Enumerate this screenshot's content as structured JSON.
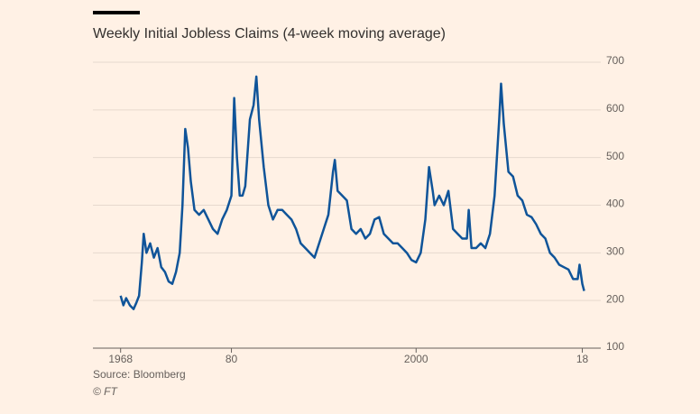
{
  "chart_data": {
    "type": "line",
    "title": "Weekly Initial Jobless Claims (4-week moving average)",
    "source": "Source: Bloomberg",
    "copyright": "© FT",
    "xlim": [
      1965,
      2020
    ],
    "ylim": [
      100,
      700
    ],
    "xticks": [
      1968,
      {
        "value": 1980,
        "label": "80"
      },
      2000,
      {
        "value": 2018,
        "label": "18"
      }
    ],
    "yticks": [
      100,
      200,
      300,
      400,
      500,
      600,
      700
    ],
    "grid": true,
    "series": [
      {
        "color": "#0f5499",
        "x": [
          1968.0,
          1968.3,
          1968.6,
          1969.0,
          1969.4,
          1969.7,
          1970.0,
          1970.3,
          1970.5,
          1970.8,
          1971.2,
          1971.6,
          1972.0,
          1972.4,
          1972.8,
          1973.2,
          1973.6,
          1974.0,
          1974.4,
          1974.7,
          1975.0,
          1975.3,
          1975.6,
          1976.0,
          1976.5,
          1977.0,
          1977.5,
          1978.0,
          1978.5,
          1979.0,
          1979.5,
          1980.0,
          1980.3,
          1980.6,
          1980.9,
          1981.2,
          1981.5,
          1982.0,
          1982.4,
          1982.7,
          1983.0,
          1983.5,
          1984.0,
          1984.5,
          1985.0,
          1985.5,
          1986.0,
          1986.5,
          1987.0,
          1987.5,
          1988.0,
          1988.5,
          1989.0,
          1989.5,
          1990.0,
          1990.5,
          1991.0,
          1991.2,
          1991.5,
          1992.0,
          1992.5,
          1993.0,
          1993.5,
          1994.0,
          1994.5,
          1995.0,
          1995.5,
          1996.0,
          1996.5,
          1997.0,
          1997.5,
          1998.0,
          1998.5,
          1999.0,
          1999.5,
          2000.0,
          2000.5,
          2001.0,
          2001.4,
          2001.8,
          2002.0,
          2002.5,
          2003.0,
          2003.5,
          2004.0,
          2004.5,
          2005.0,
          2005.5,
          2005.7,
          2006.0,
          2006.5,
          2007.0,
          2007.5,
          2008.0,
          2008.5,
          2009.0,
          2009.2,
          2009.5,
          2010.0,
          2010.5,
          2011.0,
          2011.5,
          2012.0,
          2012.5,
          2013.0,
          2013.5,
          2014.0,
          2014.5,
          2015.0,
          2015.5,
          2016.0,
          2016.5,
          2017.0,
          2017.5,
          2017.7,
          2018.0,
          2018.2
        ],
        "values": [
          210,
          190,
          205,
          190,
          182,
          195,
          210,
          280,
          340,
          300,
          320,
          290,
          310,
          270,
          260,
          240,
          235,
          260,
          300,
          400,
          560,
          520,
          450,
          390,
          380,
          390,
          370,
          350,
          340,
          370,
          390,
          420,
          625,
          500,
          420,
          420,
          440,
          580,
          610,
          670,
          580,
          480,
          400,
          370,
          390,
          390,
          380,
          370,
          350,
          320,
          310,
          300,
          290,
          320,
          350,
          380,
          470,
          495,
          430,
          420,
          410,
          350,
          340,
          350,
          330,
          340,
          370,
          375,
          340,
          330,
          320,
          320,
          310,
          300,
          285,
          280,
          300,
          370,
          480,
          430,
          400,
          420,
          400,
          430,
          350,
          340,
          330,
          330,
          390,
          310,
          310,
          320,
          310,
          340,
          420,
          580,
          655,
          570,
          470,
          460,
          420,
          410,
          380,
          375,
          360,
          340,
          330,
          300,
          290,
          275,
          270,
          265,
          245,
          245,
          275,
          235,
          220
        ]
      }
    ]
  }
}
